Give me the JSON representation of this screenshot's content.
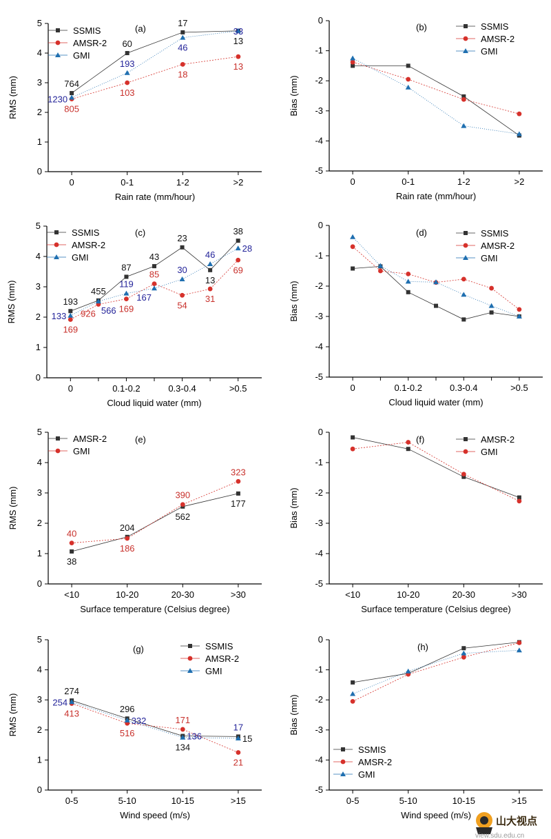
{
  "colors": {
    "black": "#333333",
    "red": "#d6312b",
    "blue": "#1f6fb0",
    "annBlue": "#24249a",
    "annRed": "#c8302b",
    "annBlack": "#111111"
  },
  "watermark": {
    "name": "山大视点",
    "url": "view.sdu.edu.cn"
  },
  "chart_data": [
    {
      "id": "a",
      "type": "line",
      "panel_label": "(a)",
      "xlabel": "Rain rate (mm/hour)",
      "ylabel": "RMS (mm)",
      "categories": [
        "0",
        "0-1",
        "1-2",
        ">2"
      ],
      "ylim": [
        0,
        5
      ],
      "yticks": [
        "0",
        "1",
        "2",
        "3",
        "4",
        "5"
      ],
      "legend_position": "top-left",
      "series": [
        {
          "name": "SSMIS",
          "color_key": "black",
          "marker": "square",
          "values": [
            2.65,
            4.0,
            4.7,
            4.75
          ]
        },
        {
          "name": "AMSR-2",
          "color_key": "red",
          "marker": "circle",
          "values": [
            2.45,
            3.0,
            3.62,
            3.88
          ]
        },
        {
          "name": "GMI",
          "color_key": "blue",
          "marker": "triangle",
          "values": [
            2.5,
            3.33,
            4.52,
            4.75
          ]
        }
      ],
      "annotations": [
        {
          "text": "764",
          "color_key": "annBlack",
          "anchor": [
            0,
            2.65
          ],
          "offset": "above"
        },
        {
          "text": "1230",
          "color_key": "annBlue",
          "anchor": [
            0,
            2.45
          ],
          "offset": "left"
        },
        {
          "text": "805",
          "color_key": "annRed",
          "anchor": [
            0,
            2.45
          ],
          "offset": "below"
        },
        {
          "text": "60",
          "color_key": "annBlack",
          "anchor": [
            1,
            4.0
          ],
          "offset": "above"
        },
        {
          "text": "193",
          "color_key": "annBlue",
          "anchor": [
            1,
            3.33
          ],
          "offset": "above"
        },
        {
          "text": "103",
          "color_key": "annRed",
          "anchor": [
            1,
            3.0
          ],
          "offset": "below"
        },
        {
          "text": "17",
          "color_key": "annBlack",
          "anchor": [
            2,
            4.7
          ],
          "offset": "above"
        },
        {
          "text": "46",
          "color_key": "annBlue",
          "anchor": [
            2,
            4.52
          ],
          "offset": "below"
        },
        {
          "text": "18",
          "color_key": "annRed",
          "anchor": [
            2,
            3.62
          ],
          "offset": "below"
        },
        {
          "text": "33",
          "color_key": "annBlue",
          "anchor": [
            3,
            4.75
          ],
          "offset": "onpoint"
        },
        {
          "text": "13",
          "color_key": "annBlack",
          "anchor": [
            3,
            4.75
          ],
          "offset": "below"
        },
        {
          "text": "13",
          "color_key": "annRed",
          "anchor": [
            3,
            3.88
          ],
          "offset": "below"
        }
      ]
    },
    {
      "id": "b",
      "type": "line",
      "panel_label": "(b)",
      "xlabel": "Rain rate (mm/hour)",
      "ylabel": "Bias (mm)",
      "categories": [
        "0",
        "0-1",
        "1-2",
        ">2"
      ],
      "ylim": [
        -5,
        0
      ],
      "yticks": [
        "0",
        "-1",
        "-2",
        "-3",
        "-4",
        "-5"
      ],
      "legend_position": "top-right",
      "series": [
        {
          "name": "SSMIS",
          "color_key": "black",
          "marker": "square",
          "values": [
            -1.5,
            -1.5,
            -2.52,
            -3.82
          ]
        },
        {
          "name": "AMSR-2",
          "color_key": "red",
          "marker": "circle",
          "values": [
            -1.38,
            -1.95,
            -2.62,
            -3.1
          ]
        },
        {
          "name": "GMI",
          "color_key": "blue",
          "marker": "triangle",
          "values": [
            -1.25,
            -2.22,
            -3.5,
            -3.77
          ]
        }
      ],
      "annotations": []
    },
    {
      "id": "c",
      "type": "line",
      "panel_label": "(c)",
      "xlabel": "Cloud liquid water (mm)",
      "ylabel": "RMS (mm)",
      "categories": [
        "0",
        "",
        "0.1-0.2",
        "",
        "0.3-0.4",
        "",
        ">0.5"
      ],
      "ylim": [
        0,
        5
      ],
      "yticks": [
        "0",
        "1",
        "2",
        "3",
        "4",
        "5"
      ],
      "legend_position": "top-left",
      "series": [
        {
          "name": "SSMIS",
          "color_key": "black",
          "marker": "square",
          "values": [
            2.2,
            2.55,
            3.33,
            3.68,
            4.3,
            3.55,
            4.52
          ]
        },
        {
          "name": "AMSR-2",
          "color_key": "red",
          "marker": "circle",
          "values": [
            1.92,
            2.42,
            2.6,
            3.1,
            2.72,
            2.93,
            3.88
          ]
        },
        {
          "name": "GMI",
          "color_key": "blue",
          "marker": "triangle",
          "values": [
            2.05,
            2.52,
            2.78,
            2.95,
            3.25,
            3.75,
            4.27
          ]
        }
      ],
      "annotations": [
        {
          "text": "193",
          "color_key": "annBlack",
          "anchor": [
            0,
            2.2
          ],
          "offset": "above"
        },
        {
          "text": "133",
          "color_key": "annBlue",
          "anchor": [
            0,
            2.05
          ],
          "offset": "left"
        },
        {
          "text": "169",
          "color_key": "annRed",
          "anchor": [
            0,
            1.92
          ],
          "offset": "below"
        },
        {
          "text": "455",
          "color_key": "annBlack",
          "anchor": [
            1,
            2.55
          ],
          "offset": "above"
        },
        {
          "text": "926",
          "color_key": "annRed",
          "anchor": [
            1,
            2.42
          ],
          "offset": "belowleft"
        },
        {
          "text": "566",
          "color_key": "annBlue",
          "anchor": [
            1,
            2.52
          ],
          "offset": "belowright"
        },
        {
          "text": "87",
          "color_key": "annBlack",
          "anchor": [
            2,
            3.33
          ],
          "offset": "above"
        },
        {
          "text": "119",
          "color_key": "annBlue",
          "anchor": [
            2,
            2.78
          ],
          "offset": "above"
        },
        {
          "text": "169",
          "color_key": "annRed",
          "anchor": [
            2,
            2.6
          ],
          "offset": "below"
        },
        {
          "text": "43",
          "color_key": "annBlack",
          "anchor": [
            3,
            3.68
          ],
          "offset": "above"
        },
        {
          "text": "85",
          "color_key": "annRed",
          "anchor": [
            3,
            3.1
          ],
          "offset": "above"
        },
        {
          "text": "167",
          "color_key": "annBlue",
          "anchor": [
            3,
            2.95
          ],
          "offset": "belowleft"
        },
        {
          "text": "23",
          "color_key": "annBlack",
          "anchor": [
            4,
            4.3
          ],
          "offset": "above"
        },
        {
          "text": "30",
          "color_key": "annBlue",
          "anchor": [
            4,
            3.25
          ],
          "offset": "above"
        },
        {
          "text": "54",
          "color_key": "annRed",
          "anchor": [
            4,
            2.72
          ],
          "offset": "below"
        },
        {
          "text": "46",
          "color_key": "annBlue",
          "anchor": [
            5,
            3.75
          ],
          "offset": "above"
        },
        {
          "text": "13",
          "color_key": "annBlack",
          "anchor": [
            5,
            3.55
          ],
          "offset": "below"
        },
        {
          "text": "31",
          "color_key": "annRed",
          "anchor": [
            5,
            2.93
          ],
          "offset": "below"
        },
        {
          "text": "38",
          "color_key": "annBlack",
          "anchor": [
            6,
            4.52
          ],
          "offset": "above"
        },
        {
          "text": "28",
          "color_key": "annBlue",
          "anchor": [
            6,
            4.27
          ],
          "offset": "right"
        },
        {
          "text": "69",
          "color_key": "annRed",
          "anchor": [
            6,
            3.88
          ],
          "offset": "below"
        }
      ]
    },
    {
      "id": "d",
      "type": "line",
      "panel_label": "(d)",
      "xlabel": "Cloud liquid water (mm)",
      "ylabel": "Bias (mm)",
      "categories": [
        "0",
        "",
        "0.1-0.2",
        "",
        "0.3-0.4",
        "",
        ">0.5"
      ],
      "ylim": [
        -5,
        0
      ],
      "yticks": [
        "0",
        "-1",
        "-2",
        "-3",
        "-4",
        "-5"
      ],
      "legend_position": "top-right",
      "series": [
        {
          "name": "SSMIS",
          "color_key": "black",
          "marker": "square",
          "values": [
            -1.42,
            -1.35,
            -2.2,
            -2.65,
            -3.1,
            -2.87,
            -3.0
          ]
        },
        {
          "name": "AMSR-2",
          "color_key": "red",
          "marker": "circle",
          "values": [
            -0.7,
            -1.5,
            -1.6,
            -1.88,
            -1.77,
            -2.07,
            -2.77
          ]
        },
        {
          "name": "GMI",
          "color_key": "blue",
          "marker": "triangle",
          "values": [
            -0.38,
            -1.33,
            -1.85,
            -1.87,
            -2.28,
            -2.65,
            -3.0
          ]
        }
      ],
      "annotations": []
    },
    {
      "id": "e",
      "type": "line",
      "panel_label": "(e)",
      "xlabel": "Surface temperature (Celsius degree)",
      "ylabel": "RMS (mm)",
      "categories": [
        "<10",
        "10-20",
        "20-30",
        ">30"
      ],
      "ylim": [
        0,
        5
      ],
      "yticks": [
        "0",
        "1",
        "2",
        "3",
        "4",
        "5"
      ],
      "legend_position": "top-left",
      "series": [
        {
          "name": "AMSR-2",
          "color_key": "black",
          "marker": "square",
          "values": [
            1.07,
            1.55,
            2.55,
            2.98
          ]
        },
        {
          "name": "GMI",
          "color_key": "red",
          "marker": "circle",
          "values": [
            1.35,
            1.5,
            2.62,
            3.38
          ]
        }
      ],
      "annotations": [
        {
          "text": "40",
          "color_key": "annRed",
          "anchor": [
            0,
            1.35
          ],
          "offset": "above"
        },
        {
          "text": "38",
          "color_key": "annBlack",
          "anchor": [
            0,
            1.07
          ],
          "offset": "below"
        },
        {
          "text": "204",
          "color_key": "annBlack",
          "anchor": [
            1,
            1.55
          ],
          "offset": "above"
        },
        {
          "text": "186",
          "color_key": "annRed",
          "anchor": [
            1,
            1.5
          ],
          "offset": "below"
        },
        {
          "text": "390",
          "color_key": "annRed",
          "anchor": [
            2,
            2.62
          ],
          "offset": "above"
        },
        {
          "text": "562",
          "color_key": "annBlack",
          "anchor": [
            2,
            2.55
          ],
          "offset": "below"
        },
        {
          "text": "323",
          "color_key": "annRed",
          "anchor": [
            3,
            3.38
          ],
          "offset": "above"
        },
        {
          "text": "177",
          "color_key": "annBlack",
          "anchor": [
            3,
            2.98
          ],
          "offset": "below"
        }
      ]
    },
    {
      "id": "f",
      "type": "line",
      "panel_label": "(f)",
      "xlabel": "Surface temperature (Celsius degree)",
      "ylabel": "Bias (mm)",
      "categories": [
        "<10",
        "10-20",
        "20-30",
        ">30"
      ],
      "ylim": [
        -5,
        0
      ],
      "yticks": [
        "0",
        "-1",
        "-2",
        "-3",
        "-4",
        "-5"
      ],
      "legend_position": "top-right",
      "series": [
        {
          "name": "AMSR-2",
          "color_key": "black",
          "marker": "square",
          "values": [
            -0.17,
            -0.55,
            -1.47,
            -2.15
          ]
        },
        {
          "name": "GMI",
          "color_key": "red",
          "marker": "circle",
          "values": [
            -0.55,
            -0.33,
            -1.38,
            -2.27
          ]
        }
      ],
      "annotations": []
    },
    {
      "id": "g",
      "type": "line",
      "panel_label": "(g)",
      "xlabel": "Wind speed (m/s)",
      "ylabel": "RMS (mm)",
      "categories": [
        "0-5",
        "5-10",
        "10-15",
        ">15"
      ],
      "ylim": [
        0,
        5
      ],
      "yticks": [
        "0",
        "1",
        "2",
        "3",
        "4",
        "5"
      ],
      "legend_position": "top-right",
      "series": [
        {
          "name": "SSMIS",
          "color_key": "black",
          "marker": "square",
          "values": [
            2.98,
            2.38,
            1.8,
            1.78
          ]
        },
        {
          "name": "AMSR-2",
          "color_key": "red",
          "marker": "circle",
          "values": [
            2.88,
            2.22,
            2.02,
            1.25
          ]
        },
        {
          "name": "GMI",
          "color_key": "blue",
          "marker": "triangle",
          "values": [
            2.93,
            2.32,
            1.75,
            1.72
          ]
        }
      ],
      "annotations": [
        {
          "text": "274",
          "color_key": "annBlack",
          "anchor": [
            0,
            2.98
          ],
          "offset": "above"
        },
        {
          "text": "254",
          "color_key": "annBlue",
          "anchor": [
            0,
            2.93
          ],
          "offset": "left"
        },
        {
          "text": "413",
          "color_key": "annRed",
          "anchor": [
            0,
            2.88
          ],
          "offset": "below"
        },
        {
          "text": "296",
          "color_key": "annBlack",
          "anchor": [
            1,
            2.38
          ],
          "offset": "above"
        },
        {
          "text": "332",
          "color_key": "annBlue",
          "anchor": [
            1,
            2.32
          ],
          "offset": "right"
        },
        {
          "text": "516",
          "color_key": "annRed",
          "anchor": [
            1,
            2.22
          ],
          "offset": "below"
        },
        {
          "text": "171",
          "color_key": "annRed",
          "anchor": [
            2,
            2.02
          ],
          "offset": "above"
        },
        {
          "text": "136",
          "color_key": "annBlue",
          "anchor": [
            2,
            1.8
          ],
          "offset": "right"
        },
        {
          "text": "134",
          "color_key": "annBlack",
          "anchor": [
            2,
            1.75
          ],
          "offset": "below"
        },
        {
          "text": "17",
          "color_key": "annBlue",
          "anchor": [
            3,
            1.78
          ],
          "offset": "above"
        },
        {
          "text": "15",
          "color_key": "annBlack",
          "anchor": [
            3,
            1.72
          ],
          "offset": "right"
        },
        {
          "text": "21",
          "color_key": "annRed",
          "anchor": [
            3,
            1.25
          ],
          "offset": "below"
        }
      ]
    },
    {
      "id": "h",
      "type": "line",
      "panel_label": "(h)",
      "xlabel": "Wind speed (m/s)",
      "ylabel": "Bias (mm)",
      "categories": [
        "0-5",
        "5-10",
        "10-15",
        ">15"
      ],
      "ylim": [
        -5,
        0
      ],
      "yticks": [
        "0",
        "-1",
        "-2",
        "-3",
        "-4",
        "-5"
      ],
      "legend_position": "bottom-left",
      "series": [
        {
          "name": "SSMIS",
          "color_key": "black",
          "marker": "square",
          "values": [
            -1.42,
            -1.12,
            -0.28,
            -0.08
          ]
        },
        {
          "name": "AMSR-2",
          "color_key": "red",
          "marker": "circle",
          "values": [
            -2.05,
            -1.15,
            -0.58,
            -0.1
          ]
        },
        {
          "name": "GMI",
          "color_key": "blue",
          "marker": "triangle",
          "values": [
            -1.8,
            -1.05,
            -0.45,
            -0.35
          ]
        }
      ],
      "annotations": []
    }
  ]
}
